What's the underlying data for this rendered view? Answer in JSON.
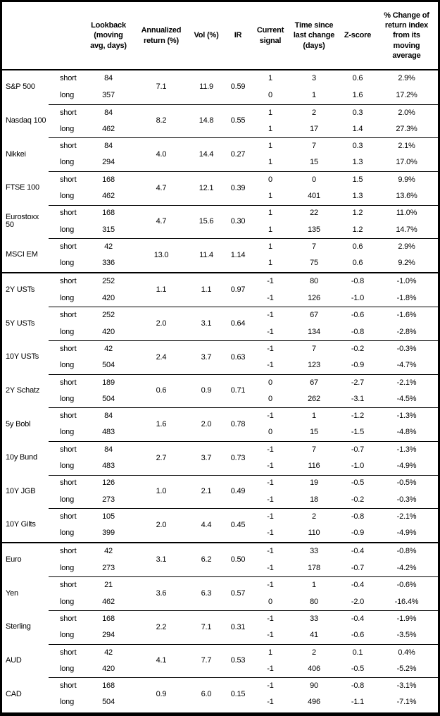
{
  "colors": {
    "text": "#000000",
    "border": "#000000",
    "background": "#ffffff"
  },
  "chart_data": {
    "type": "table",
    "header": {
      "asset": "",
      "horizon": "",
      "lookback": "Lookback\n(moving\navg, days)",
      "annualized_return": "Annualized\nreturn (%)",
      "vol": "Vol (%)",
      "ir": "IR",
      "current_signal": "Current\nsignal",
      "time_since_change": "Time since\nlast change\n(days)",
      "zscore": "Z-score",
      "pct_change": "% Change of\nreturn index\nfrom its\nmoving\naverage"
    },
    "sections": [
      "equities",
      "rates",
      "fx"
    ],
    "groups": [
      {
        "asset": "S&P 500",
        "section": "equities",
        "section_start": false,
        "annualized_return": "7.1",
        "vol": "11.9",
        "ir": "0.59",
        "rows": [
          {
            "horizon": "short",
            "lookback": "84",
            "signal": "1",
            "days_since_change": "3",
            "zscore": "0.6",
            "pct_change": "2.9%"
          },
          {
            "horizon": "long",
            "lookback": "357",
            "signal": "0",
            "days_since_change": "1",
            "zscore": "1.6",
            "pct_change": "17.2%"
          }
        ]
      },
      {
        "asset": "Nasdaq 100",
        "section": "equities",
        "section_start": false,
        "annualized_return": "8.2",
        "vol": "14.8",
        "ir": "0.55",
        "rows": [
          {
            "horizon": "short",
            "lookback": "84",
            "signal": "1",
            "days_since_change": "2",
            "zscore": "0.3",
            "pct_change": "2.0%"
          },
          {
            "horizon": "long",
            "lookback": "462",
            "signal": "1",
            "days_since_change": "17",
            "zscore": "1.4",
            "pct_change": "27.3%"
          }
        ]
      },
      {
        "asset": "Nikkei",
        "section": "equities",
        "section_start": false,
        "annualized_return": "4.0",
        "vol": "14.4",
        "ir": "0.27",
        "rows": [
          {
            "horizon": "short",
            "lookback": "84",
            "signal": "1",
            "days_since_change": "7",
            "zscore": "0.3",
            "pct_change": "2.1%"
          },
          {
            "horizon": "long",
            "lookback": "294",
            "signal": "1",
            "days_since_change": "15",
            "zscore": "1.3",
            "pct_change": "17.0%"
          }
        ]
      },
      {
        "asset": "FTSE 100",
        "section": "equities",
        "section_start": false,
        "annualized_return": "4.7",
        "vol": "12.1",
        "ir": "0.39",
        "rows": [
          {
            "horizon": "short",
            "lookback": "168",
            "signal": "0",
            "days_since_change": "0",
            "zscore": "1.5",
            "pct_change": "9.9%"
          },
          {
            "horizon": "long",
            "lookback": "462",
            "signal": "1",
            "days_since_change": "401",
            "zscore": "1.3",
            "pct_change": "13.6%"
          }
        ]
      },
      {
        "asset": "Eurostoxx 50",
        "section": "equities",
        "section_start": false,
        "annualized_return": "4.7",
        "vol": "15.6",
        "ir": "0.30",
        "rows": [
          {
            "horizon": "short",
            "lookback": "168",
            "signal": "1",
            "days_since_change": "22",
            "zscore": "1.2",
            "pct_change": "11.0%"
          },
          {
            "horizon": "long",
            "lookback": "315",
            "signal": "1",
            "days_since_change": "135",
            "zscore": "1.2",
            "pct_change": "14.7%"
          }
        ]
      },
      {
        "asset": "MSCI EM",
        "section": "equities",
        "section_start": false,
        "annualized_return": "13.0",
        "vol": "11.4",
        "ir": "1.14",
        "rows": [
          {
            "horizon": "short",
            "lookback": "42",
            "signal": "1",
            "days_since_change": "7",
            "zscore": "0.6",
            "pct_change": "2.9%"
          },
          {
            "horizon": "long",
            "lookback": "336",
            "signal": "1",
            "days_since_change": "75",
            "zscore": "0.6",
            "pct_change": "9.2%"
          }
        ]
      },
      {
        "asset": "2Y USTs",
        "section": "rates",
        "section_start": true,
        "annualized_return": "1.1",
        "vol": "1.1",
        "ir": "0.97",
        "rows": [
          {
            "horizon": "short",
            "lookback": "252",
            "signal": "-1",
            "days_since_change": "80",
            "zscore": "-0.8",
            "pct_change": "-1.0%"
          },
          {
            "horizon": "long",
            "lookback": "420",
            "signal": "-1",
            "days_since_change": "126",
            "zscore": "-1.0",
            "pct_change": "-1.8%"
          }
        ]
      },
      {
        "asset": "5Y USTs",
        "section": "rates",
        "section_start": false,
        "annualized_return": "2.0",
        "vol": "3.1",
        "ir": "0.64",
        "rows": [
          {
            "horizon": "short",
            "lookback": "252",
            "signal": "-1",
            "days_since_change": "67",
            "zscore": "-0.6",
            "pct_change": "-1.6%"
          },
          {
            "horizon": "long",
            "lookback": "420",
            "signal": "-1",
            "days_since_change": "134",
            "zscore": "-0.8",
            "pct_change": "-2.8%"
          }
        ]
      },
      {
        "asset": "10Y USTs",
        "section": "rates",
        "section_start": false,
        "annualized_return": "2.4",
        "vol": "3.7",
        "ir": "0.63",
        "rows": [
          {
            "horizon": "short",
            "lookback": "42",
            "signal": "-1",
            "days_since_change": "7",
            "zscore": "-0.2",
            "pct_change": "-0.3%"
          },
          {
            "horizon": "long",
            "lookback": "504",
            "signal": "-1",
            "days_since_change": "123",
            "zscore": "-0.9",
            "pct_change": "-4.7%"
          }
        ]
      },
      {
        "asset": "2Y Schatz",
        "section": "rates",
        "section_start": false,
        "annualized_return": "0.6",
        "vol": "0.9",
        "ir": "0.71",
        "rows": [
          {
            "horizon": "short",
            "lookback": "189",
            "signal": "0",
            "days_since_change": "67",
            "zscore": "-2.7",
            "pct_change": "-2.1%"
          },
          {
            "horizon": "long",
            "lookback": "504",
            "signal": "0",
            "days_since_change": "262",
            "zscore": "-3.1",
            "pct_change": "-4.5%"
          }
        ]
      },
      {
        "asset": "5y Bobl",
        "section": "rates",
        "section_start": false,
        "annualized_return": "1.6",
        "vol": "2.0",
        "ir": "0.78",
        "rows": [
          {
            "horizon": "short",
            "lookback": "84",
            "signal": "-1",
            "days_since_change": "1",
            "zscore": "-1.2",
            "pct_change": "-1.3%"
          },
          {
            "horizon": "long",
            "lookback": "483",
            "signal": "0",
            "days_since_change": "15",
            "zscore": "-1.5",
            "pct_change": "-4.8%"
          }
        ]
      },
      {
        "asset": "10y Bund",
        "section": "rates",
        "section_start": false,
        "annualized_return": "2.7",
        "vol": "3.7",
        "ir": "0.73",
        "rows": [
          {
            "horizon": "short",
            "lookback": "84",
            "signal": "-1",
            "days_since_change": "7",
            "zscore": "-0.7",
            "pct_change": "-1.3%"
          },
          {
            "horizon": "long",
            "lookback": "483",
            "signal": "-1",
            "days_since_change": "116",
            "zscore": "-1.0",
            "pct_change": "-4.9%"
          }
        ]
      },
      {
        "asset": "10Y JGB",
        "section": "rates",
        "section_start": false,
        "annualized_return": "1.0",
        "vol": "2.1",
        "ir": "0.49",
        "rows": [
          {
            "horizon": "short",
            "lookback": "126",
            "signal": "-1",
            "days_since_change": "19",
            "zscore": "-0.5",
            "pct_change": "-0.5%"
          },
          {
            "horizon": "long",
            "lookback": "273",
            "signal": "-1",
            "days_since_change": "18",
            "zscore": "-0.2",
            "pct_change": "-0.3%"
          }
        ]
      },
      {
        "asset": "10Y Gilts",
        "section": "rates",
        "section_start": false,
        "annualized_return": "2.0",
        "vol": "4.4",
        "ir": "0.45",
        "rows": [
          {
            "horizon": "short",
            "lookback": "105",
            "signal": "-1",
            "days_since_change": "2",
            "zscore": "-0.8",
            "pct_change": "-2.1%"
          },
          {
            "horizon": "long",
            "lookback": "399",
            "signal": "-1",
            "days_since_change": "110",
            "zscore": "-0.9",
            "pct_change": "-4.9%"
          }
        ]
      },
      {
        "asset": "Euro",
        "section": "fx",
        "section_start": true,
        "annualized_return": "3.1",
        "vol": "6.2",
        "ir": "0.50",
        "rows": [
          {
            "horizon": "short",
            "lookback": "42",
            "signal": "-1",
            "days_since_change": "33",
            "zscore": "-0.4",
            "pct_change": "-0.8%"
          },
          {
            "horizon": "long",
            "lookback": "273",
            "signal": "-1",
            "days_since_change": "178",
            "zscore": "-0.7",
            "pct_change": "-4.2%"
          }
        ]
      },
      {
        "asset": "Yen",
        "section": "fx",
        "section_start": false,
        "annualized_return": "3.6",
        "vol": "6.3",
        "ir": "0.57",
        "rows": [
          {
            "horizon": "short",
            "lookback": "21",
            "signal": "-1",
            "days_since_change": "1",
            "zscore": "-0.4",
            "pct_change": "-0.6%"
          },
          {
            "horizon": "long",
            "lookback": "462",
            "signal": "0",
            "days_since_change": "80",
            "zscore": "-2.0",
            "pct_change": "-16.4%"
          }
        ]
      },
      {
        "asset": "Sterling",
        "section": "fx",
        "section_start": false,
        "annualized_return": "2.2",
        "vol": "7.1",
        "ir": "0.31",
        "rows": [
          {
            "horizon": "short",
            "lookback": "168",
            "signal": "-1",
            "days_since_change": "33",
            "zscore": "-0.4",
            "pct_change": "-1.9%"
          },
          {
            "horizon": "long",
            "lookback": "294",
            "signal": "-1",
            "days_since_change": "41",
            "zscore": "-0.6",
            "pct_change": "-3.5%"
          }
        ]
      },
      {
        "asset": "AUD",
        "section": "fx",
        "section_start": false,
        "annualized_return": "4.1",
        "vol": "7.7",
        "ir": "0.53",
        "rows": [
          {
            "horizon": "short",
            "lookback": "42",
            "signal": "1",
            "days_since_change": "2",
            "zscore": "0.1",
            "pct_change": "0.4%"
          },
          {
            "horizon": "long",
            "lookback": "420",
            "signal": "-1",
            "days_since_change": "406",
            "zscore": "-0.5",
            "pct_change": "-5.2%"
          }
        ]
      },
      {
        "asset": "CAD",
        "section": "fx",
        "section_start": false,
        "annualized_return": "0.9",
        "vol": "6.0",
        "ir": "0.15",
        "rows": [
          {
            "horizon": "short",
            "lookback": "168",
            "signal": "-1",
            "days_since_change": "90",
            "zscore": "-0.8",
            "pct_change": "-3.1%"
          },
          {
            "horizon": "long",
            "lookback": "504",
            "signal": "-1",
            "days_since_change": "496",
            "zscore": "-1.1",
            "pct_change": "-7.1%"
          }
        ]
      }
    ]
  }
}
